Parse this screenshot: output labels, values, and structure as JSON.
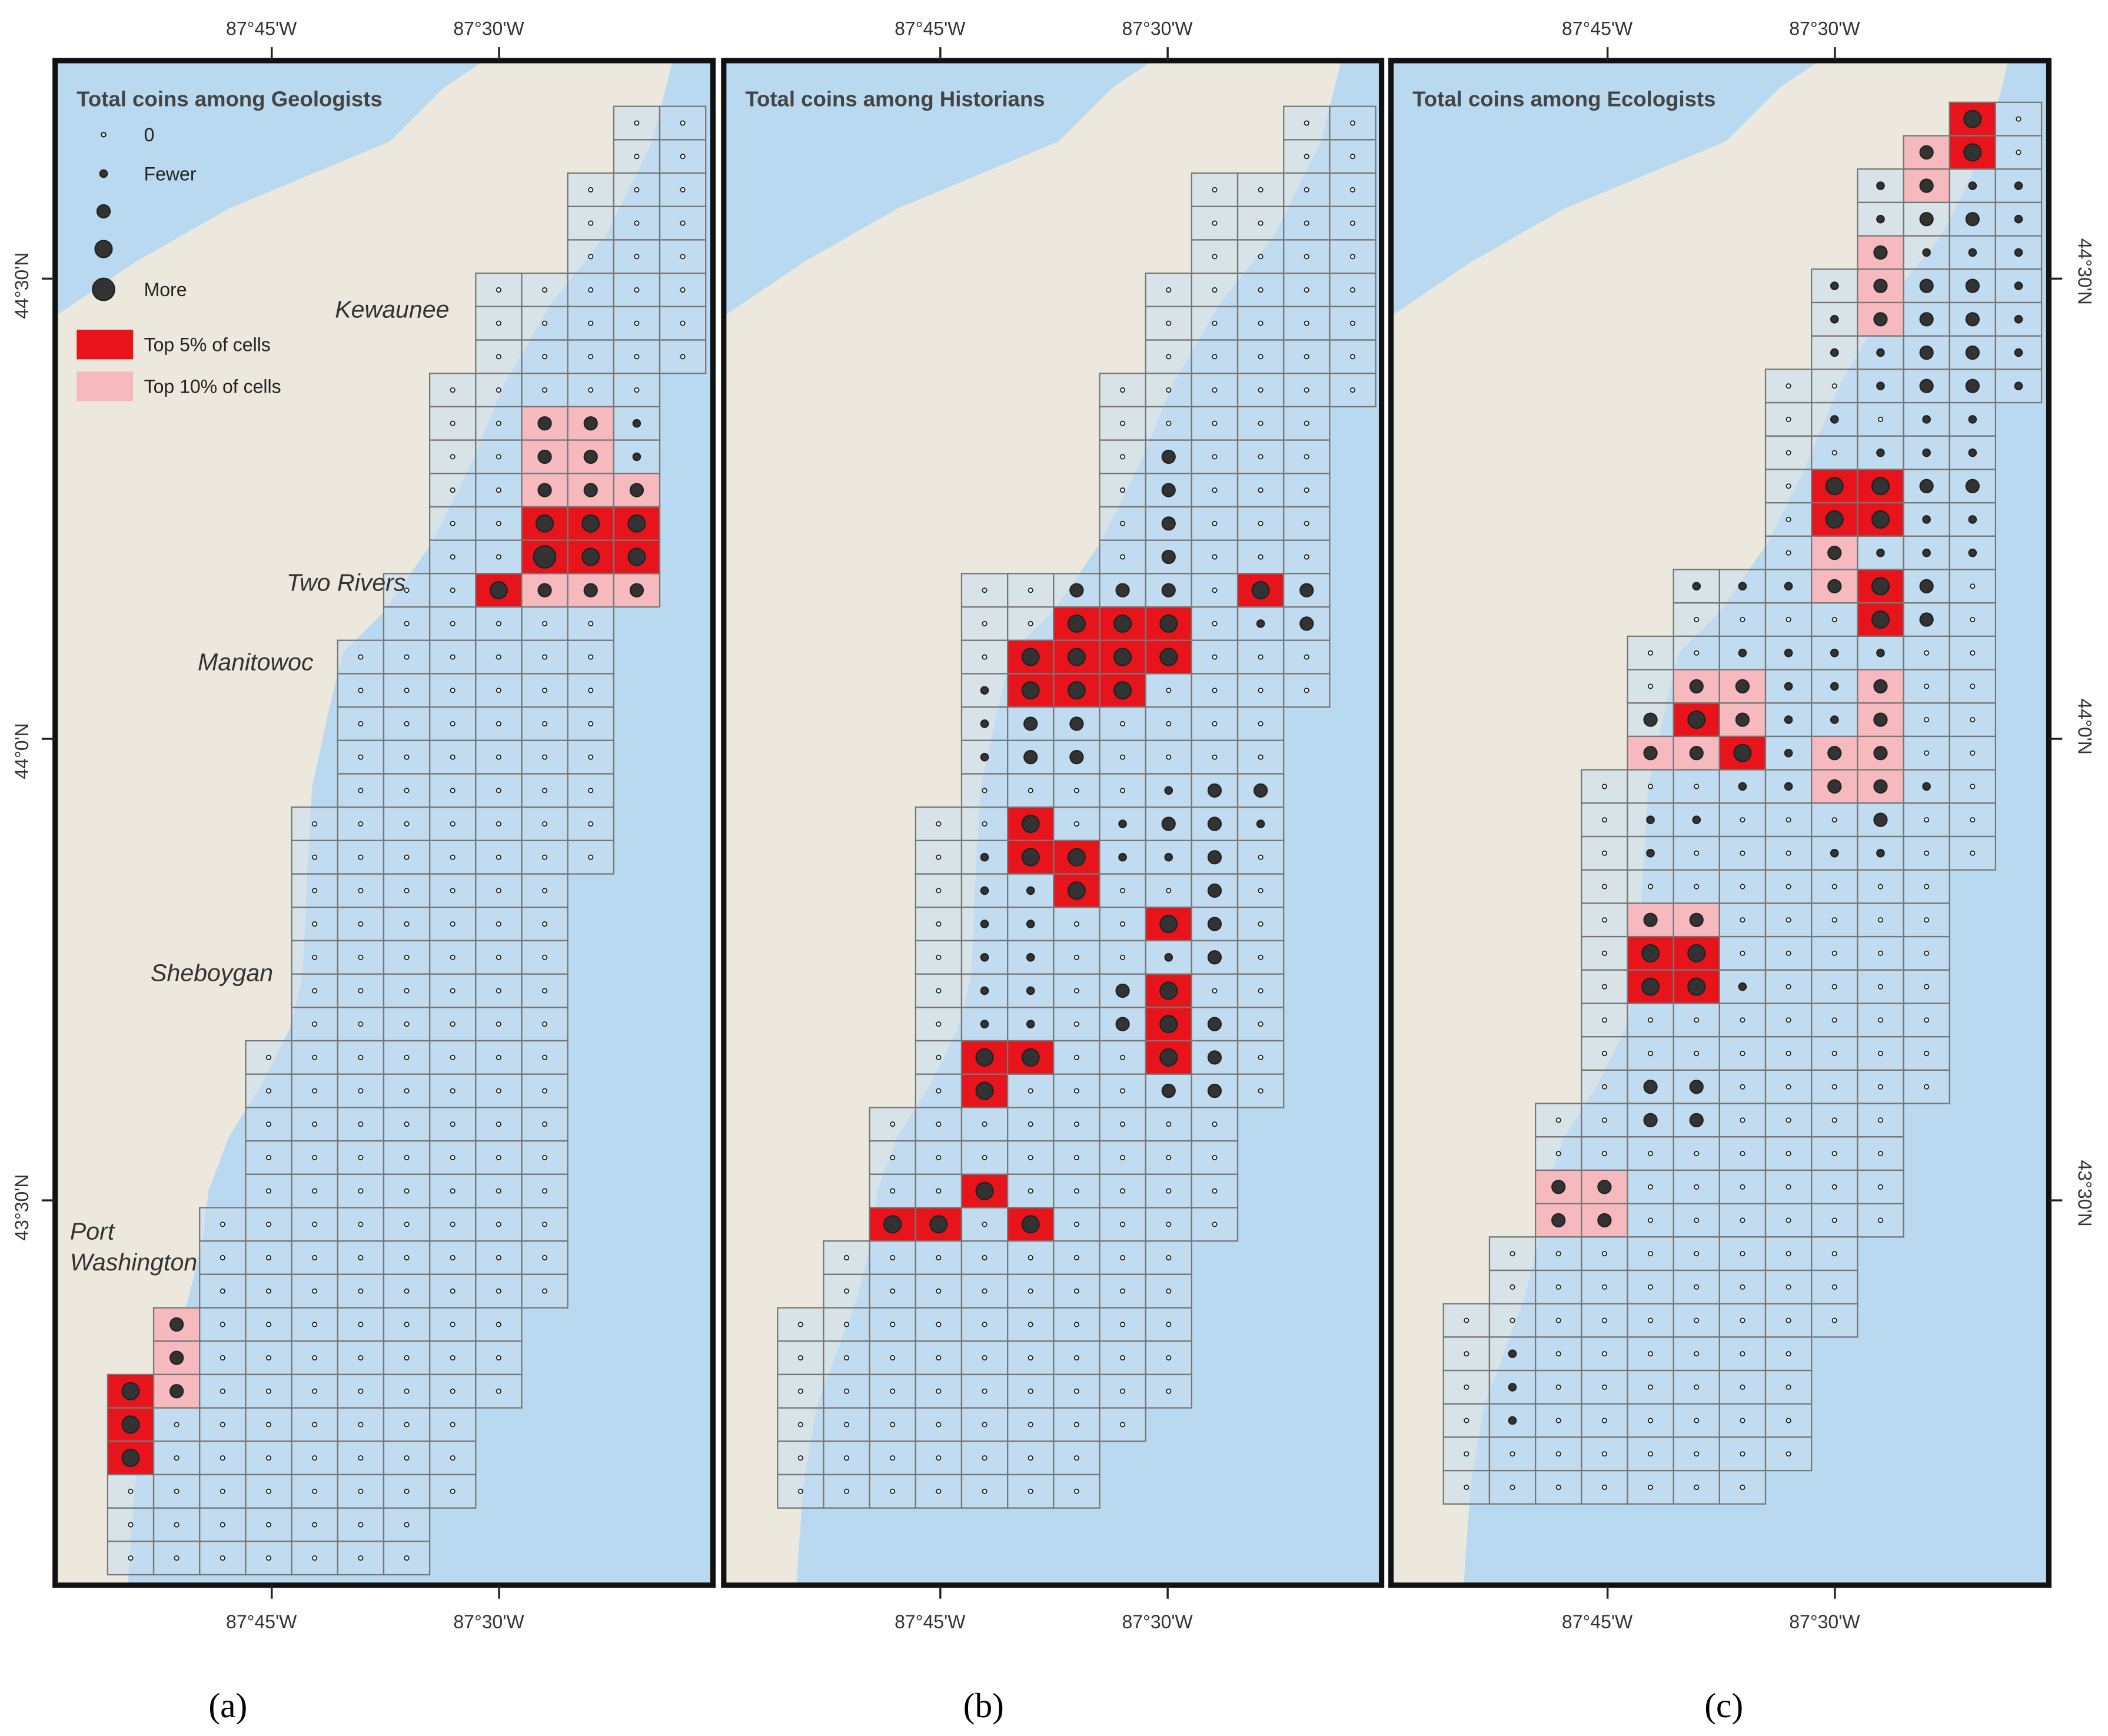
{
  "colors": {
    "water": "#b8d9ef",
    "land": "#ece8de",
    "cell_fill": "#c9def0",
    "cell_stroke": "#777777",
    "top5": "#e8141b",
    "top10": "#f5b9be",
    "dot": "#333333",
    "frame": "#111111"
  },
  "axis_labels": {
    "lon_top": [
      "87°45'W",
      "87°30'W"
    ],
    "lon_bottom": [
      "87°45'W",
      "87°30'W"
    ],
    "lat_left": [
      "44°30'N",
      "44°0'N",
      "43°30'N"
    ],
    "lat_right": [
      "44°30'N",
      "44°0'N",
      "43°30'N"
    ]
  },
  "legend": {
    "size_items": [
      "0",
      "Fewer",
      "",
      "",
      "More"
    ],
    "top5_label": "Top  5% of cells",
    "top10_label": "Top 10% of cells"
  },
  "cities": [
    {
      "name": "Kewaunee"
    },
    {
      "name": "Two Rivers"
    },
    {
      "name": "Manitowoc"
    },
    {
      "name": "Sheboygan"
    },
    {
      "name": "Port\nWashington"
    }
  ],
  "panels": [
    {
      "id": "a",
      "title": "Total coins among Geologists",
      "label": "(a)",
      "show_legend": true,
      "show_cities": true,
      "show_right_lat": false,
      "show_left_lat": true
    },
    {
      "id": "b",
      "title": "Total coins among Historians",
      "label": "(b)",
      "show_legend": false,
      "show_cities": false,
      "show_right_lat": false,
      "show_left_lat": false
    },
    {
      "id": "c",
      "title": "Total coins among Ecologists",
      "label": "(c)",
      "show_legend": false,
      "show_cities": false,
      "show_right_lat": true,
      "show_left_lat": false
    }
  ],
  "levels_legend": [
    "none",
    "top5",
    "top10"
  ]
}
